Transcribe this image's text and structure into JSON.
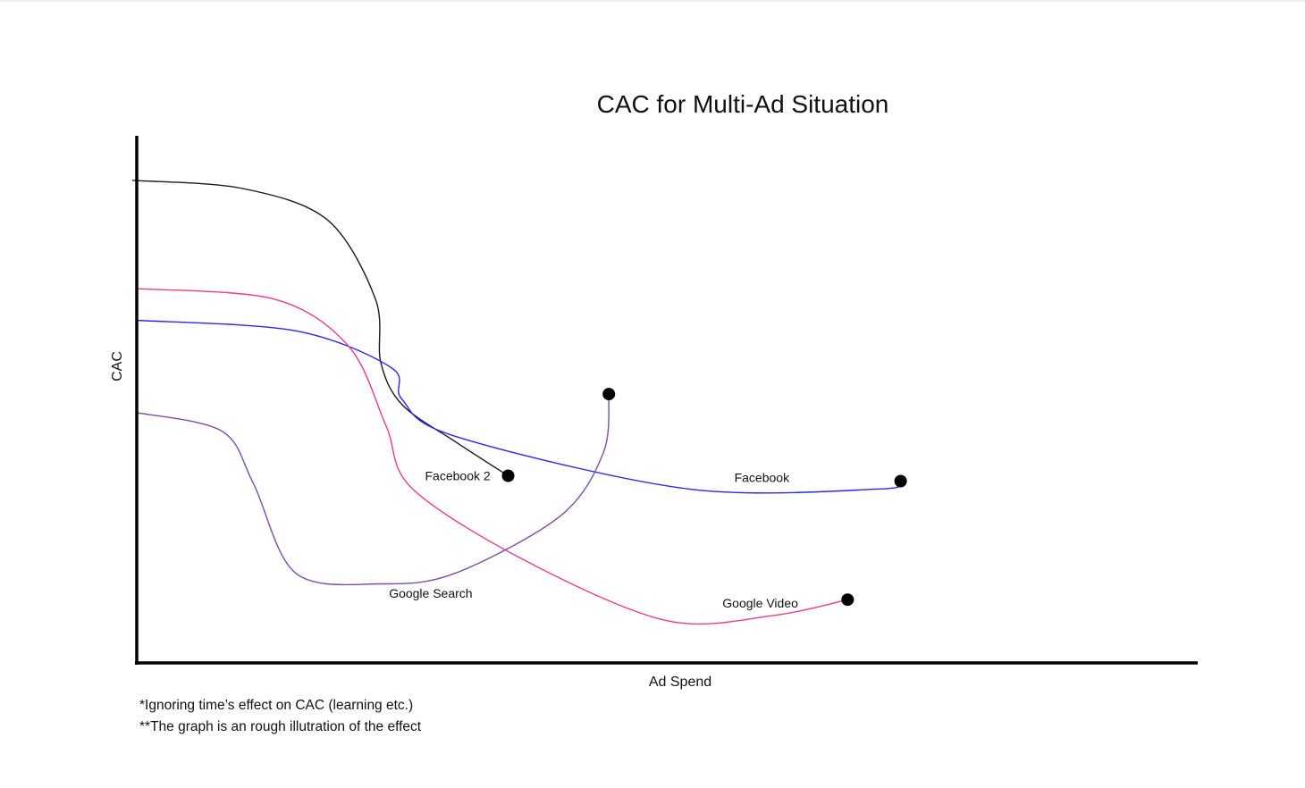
{
  "chart_data": {
    "type": "line",
    "title": "CAC for Multi-Ad Situation",
    "xlabel": "Ad Spend",
    "ylabel": "CAC",
    "xlim": [
      0,
      100
    ],
    "ylim": [
      0,
      100
    ],
    "grid": false,
    "legend": "none",
    "axis_ticks": "none",
    "series": [
      {
        "name": "Facebook 2",
        "color": "#1a1a1a",
        "endpoint_marker": true,
        "points": [
          [
            0,
            91.5
          ],
          [
            10,
            90
          ],
          [
            18,
            84
          ],
          [
            22.5,
            69
          ],
          [
            23,
            57
          ],
          [
            25,
            49
          ],
          [
            30,
            42
          ],
          [
            35,
            35.5
          ]
        ]
      },
      {
        "name": "Facebook",
        "color": "#2828f0",
        "endpoint_marker": true,
        "points": [
          [
            0,
            65
          ],
          [
            15,
            63
          ],
          [
            24,
            56
          ],
          [
            25,
            50
          ],
          [
            30,
            43
          ],
          [
            52,
            33
          ],
          [
            70,
            33
          ],
          [
            72,
            34.5
          ]
        ]
      },
      {
        "name": "Google Video",
        "color": "#ee3b8c",
        "endpoint_marker": true,
        "points": [
          [
            0,
            71
          ],
          [
            13,
            69
          ],
          [
            20,
            60
          ],
          [
            23.5,
            45
          ],
          [
            26,
            33
          ],
          [
            37,
            19
          ],
          [
            50,
            8
          ],
          [
            60,
            9
          ],
          [
            67,
            12
          ]
        ]
      },
      {
        "name": "Google Search",
        "color": "#7b4fa8",
        "endpoint_marker": true,
        "points": [
          [
            0,
            47.5
          ],
          [
            8,
            44
          ],
          [
            11,
            34
          ],
          [
            15,
            17
          ],
          [
            23,
            15
          ],
          [
            30,
            17
          ],
          [
            40,
            28
          ],
          [
            44,
            40
          ],
          [
            44.5,
            51
          ]
        ]
      }
    ]
  },
  "notes": [
    "*Ignoring time’s effect on CAC (learning etc.)",
    "**The graph is an rough illutration of the effect"
  ]
}
